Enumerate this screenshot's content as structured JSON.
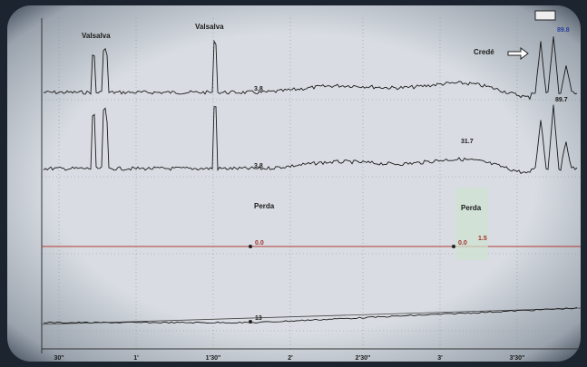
{
  "annotations": {
    "valsalva_1": "Valsalva",
    "valsalva_2": "Valsalva",
    "crede": "Credé",
    "perda_1": "Perda",
    "perda_2": "Perda"
  },
  "trace_labels": [
    "3.8",
    "89.8",
    "3.8",
    "31.7",
    "89.7",
    "0.0",
    "0.0",
    "1.5",
    "13"
  ],
  "time_axis": [
    "30''",
    "1'",
    "1'30''",
    "2'",
    "2'30''",
    "3'",
    "3'30''"
  ]
}
